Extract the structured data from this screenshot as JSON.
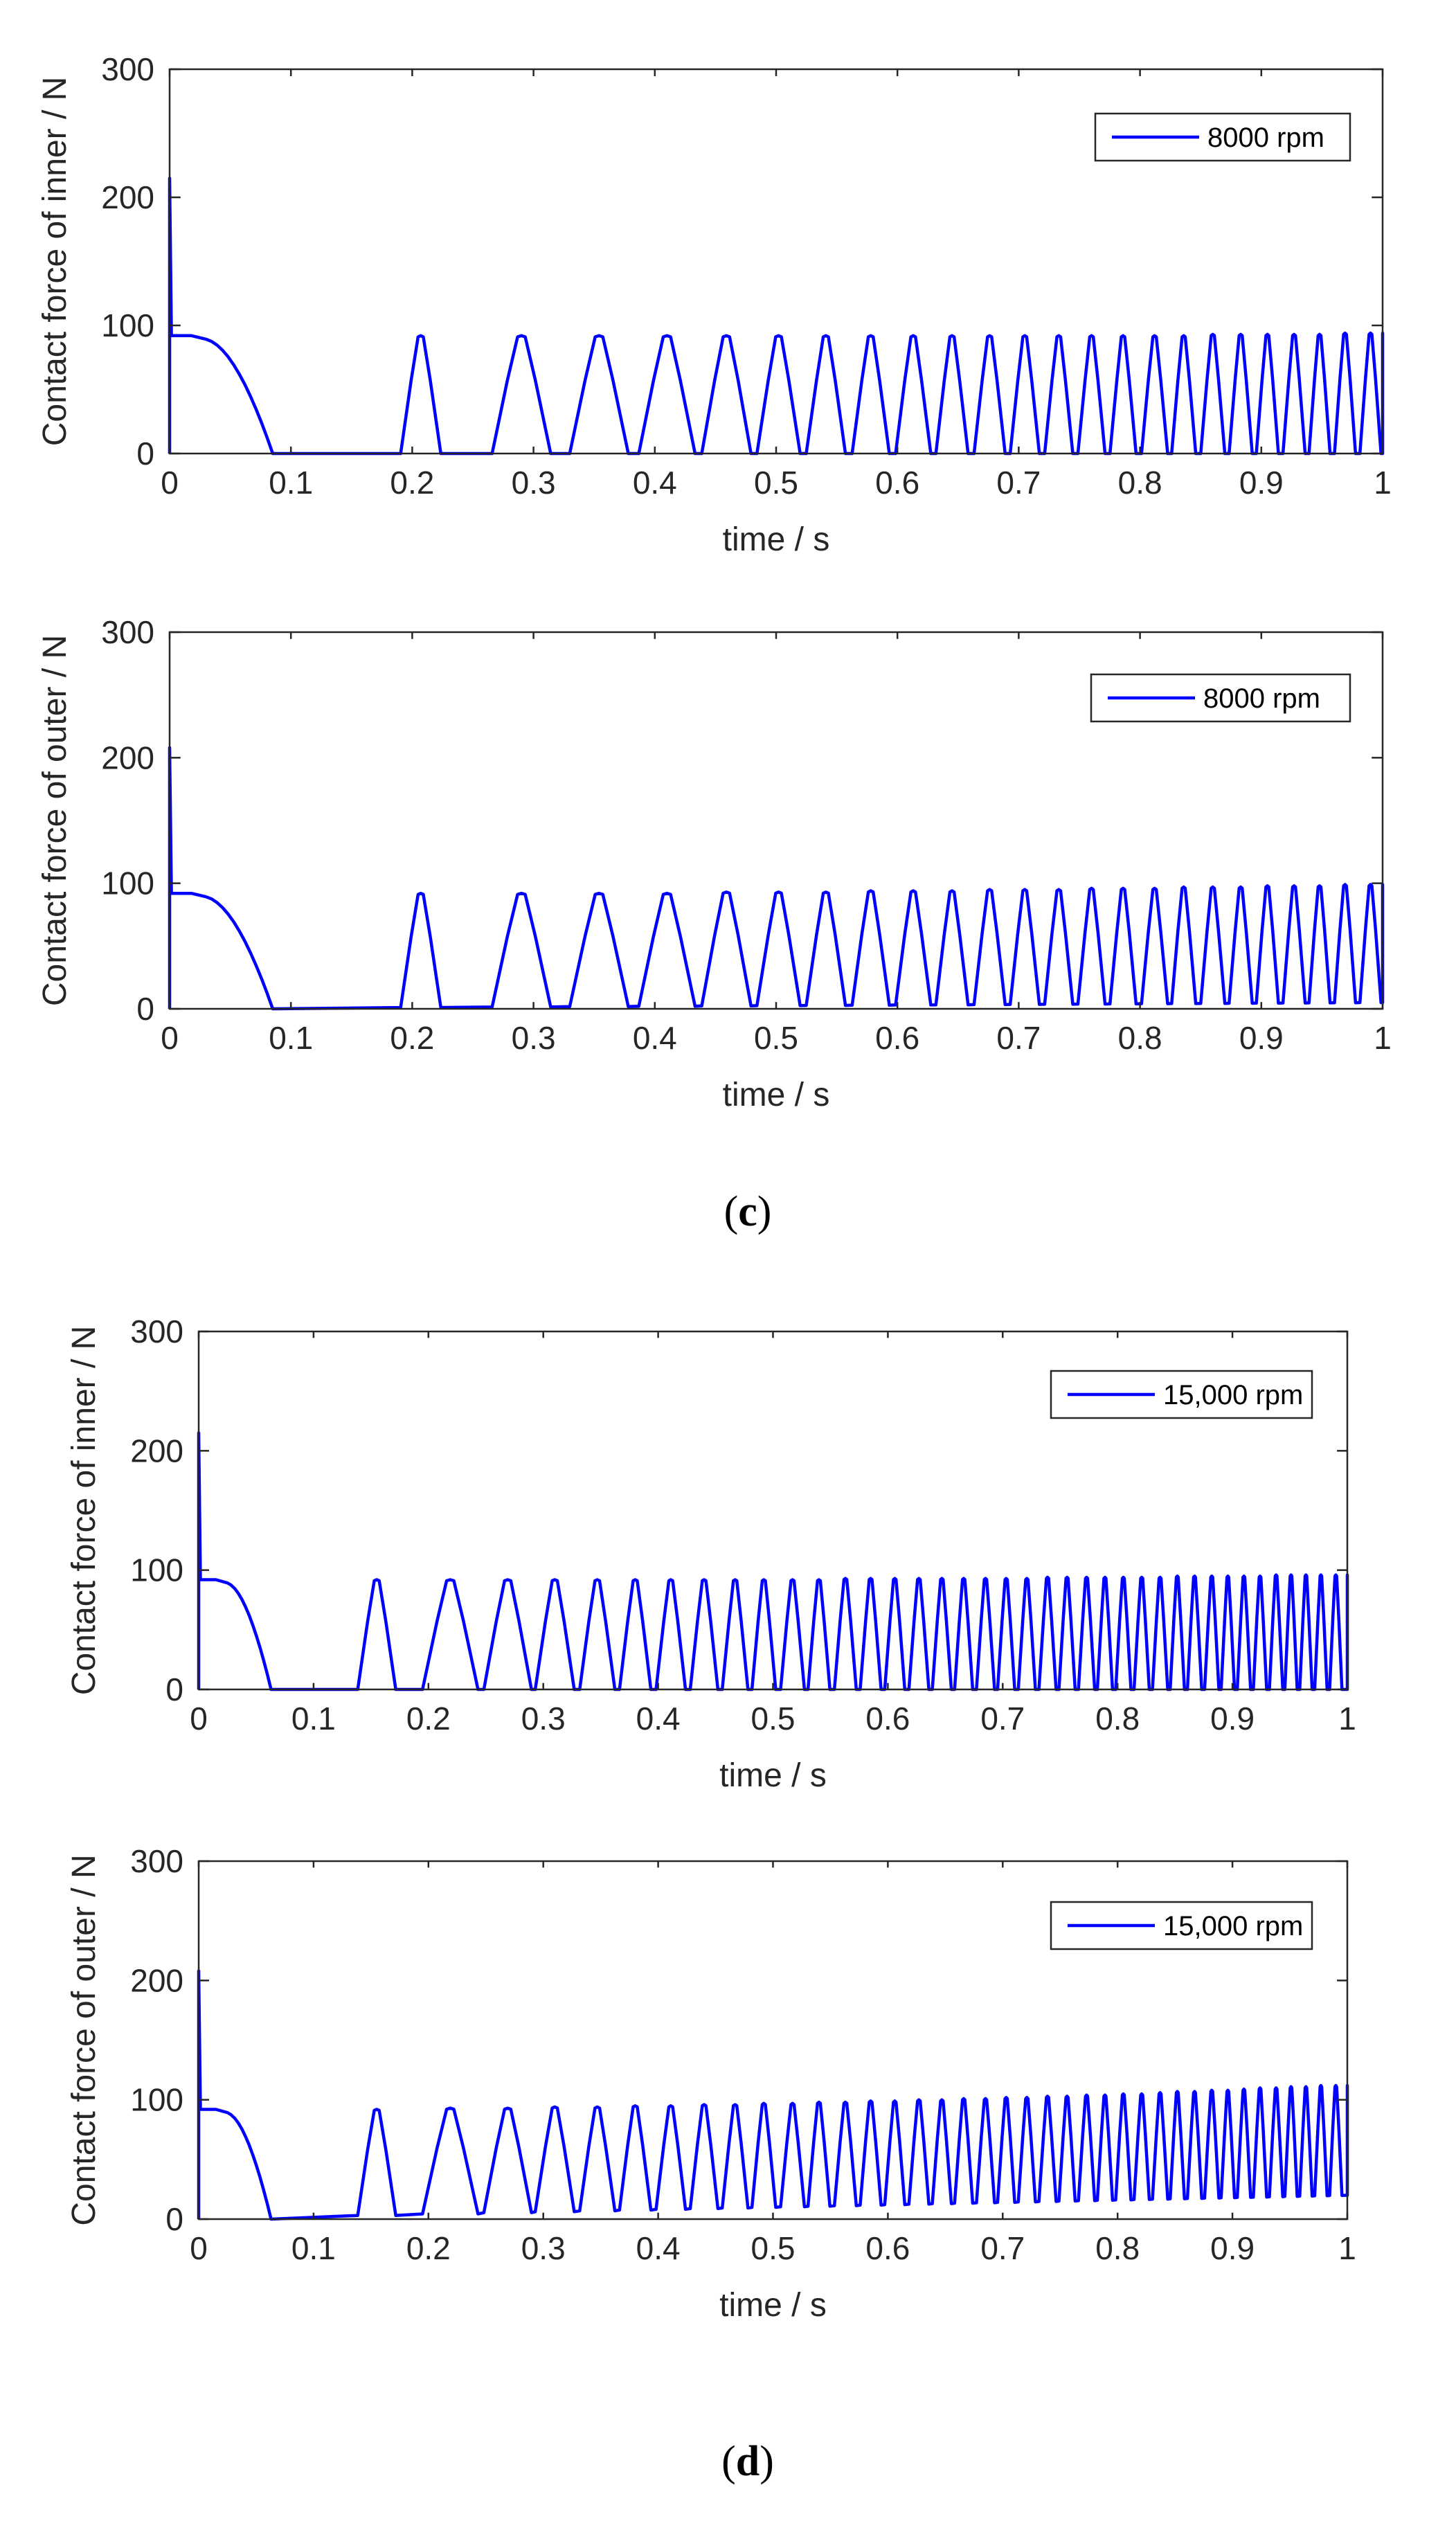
{
  "colors": {
    "series": "#0000ff",
    "axis": "#262626",
    "background": "#ffffff"
  },
  "panels": [
    {
      "label_open": "(",
      "label_letter": "c",
      "label_close": ")"
    },
    {
      "label_open": "(",
      "label_letter": "d",
      "label_close": ")"
    }
  ],
  "chart_data": [
    {
      "type": "line",
      "panel": "c",
      "xlabel": "time / s",
      "ylabel": "Contact force of inner / N",
      "xlim": [
        0,
        1
      ],
      "ylim": [
        0,
        300
      ],
      "xticks": [
        0,
        0.1,
        0.2,
        0.3,
        0.4,
        0.5,
        0.6,
        0.7,
        0.8,
        0.9,
        1
      ],
      "xtick_labels": [
        "0",
        "0.1",
        "0.2",
        "0.3",
        "0.4",
        "0.5",
        "0.6",
        "0.7",
        "0.8",
        "0.9",
        "1"
      ],
      "yticks": [
        0,
        100,
        200,
        300
      ],
      "ytick_labels": [
        "0",
        "100",
        "200",
        "300"
      ],
      "legend": "top-right",
      "grid": false,
      "series": [
        {
          "name": "8000 rpm",
          "initial_spike": 215,
          "plateau": 92,
          "plateau_end": 0.03,
          "decay_end": 0.085,
          "peak_times": [
            0.207,
            0.29,
            0.354,
            0.41,
            0.459,
            0.502,
            0.541,
            0.578,
            0.613,
            0.645,
            0.676,
            0.705,
            0.733,
            0.76,
            0.786,
            0.812,
            0.836,
            0.86,
            0.883,
            0.905,
            0.927,
            0.948,
            0.969,
            0.99
          ],
          "peak_values": [
            92,
            92,
            92,
            92,
            92,
            92,
            92,
            92,
            92,
            92,
            92,
            92,
            92,
            92,
            92,
            92,
            92,
            93,
            93,
            93,
            93,
            93,
            94,
            94
          ],
          "baseline": [
            0,
            0
          ]
        }
      ]
    },
    {
      "type": "line",
      "panel": "c",
      "xlabel": "time / s",
      "ylabel": "Contact force of outer / N",
      "xlim": [
        0,
        1
      ],
      "ylim": [
        0,
        300
      ],
      "xticks": [
        0,
        0.1,
        0.2,
        0.3,
        0.4,
        0.5,
        0.6,
        0.7,
        0.8,
        0.9,
        1
      ],
      "xtick_labels": [
        "0",
        "0.1",
        "0.2",
        "0.3",
        "0.4",
        "0.5",
        "0.6",
        "0.7",
        "0.8",
        "0.9",
        "1"
      ],
      "yticks": [
        0,
        100,
        200,
        300
      ],
      "ytick_labels": [
        "0",
        "100",
        "200",
        "300"
      ],
      "legend": "top-right",
      "grid": false,
      "series": [
        {
          "name": "8000 rpm",
          "initial_spike": 208,
          "plateau": 92,
          "plateau_end": 0.03,
          "decay_end": 0.085,
          "peak_times": [
            0.207,
            0.29,
            0.354,
            0.41,
            0.459,
            0.502,
            0.541,
            0.578,
            0.613,
            0.645,
            0.676,
            0.705,
            0.733,
            0.76,
            0.786,
            0.812,
            0.836,
            0.86,
            0.883,
            0.905,
            0.927,
            0.948,
            0.969,
            0.99
          ],
          "peak_values": [
            92,
            92,
            92,
            92,
            93,
            93,
            93,
            94,
            94,
            94,
            95,
            95,
            95,
            96,
            96,
            96,
            97,
            97,
            97,
            98,
            98,
            98,
            99,
            99
          ],
          "baseline": [
            0,
            5
          ]
        }
      ]
    },
    {
      "type": "line",
      "panel": "d",
      "xlabel": "time / s",
      "ylabel": "Contact force of inner / N",
      "xlim": [
        0,
        1
      ],
      "ylim": [
        0,
        300
      ],
      "xticks": [
        0,
        0.1,
        0.2,
        0.3,
        0.4,
        0.5,
        0.6,
        0.7,
        0.8,
        0.9,
        1
      ],
      "xtick_labels": [
        "0",
        "0.1",
        "0.2",
        "0.3",
        "0.4",
        "0.5",
        "0.6",
        "0.7",
        "0.8",
        "0.9",
        "1"
      ],
      "yticks": [
        0,
        100,
        200,
        300
      ],
      "ytick_labels": [
        "0",
        "100",
        "200",
        "300"
      ],
      "legend": "top-right",
      "grid": false,
      "series": [
        {
          "name": "15,000 rpm",
          "initial_spike": 215,
          "plateau": 92,
          "plateau_end": 0.025,
          "decay_end": 0.063,
          "peak_times": [
            0.155,
            0.219,
            0.269,
            0.31,
            0.347,
            0.38,
            0.411,
            0.44,
            0.467,
            0.492,
            0.517,
            0.54,
            0.563,
            0.585,
            0.606,
            0.627,
            0.647,
            0.666,
            0.685,
            0.703,
            0.721,
            0.739,
            0.756,
            0.773,
            0.789,
            0.805,
            0.821,
            0.837,
            0.852,
            0.867,
            0.882,
            0.896,
            0.91,
            0.924,
            0.938,
            0.951,
            0.964,
            0.977,
            0.99
          ],
          "peak_values": [
            92,
            92,
            92,
            92,
            92,
            92,
            92,
            92,
            92,
            92,
            92,
            92,
            93,
            93,
            93,
            93,
            93,
            93,
            93,
            93,
            93,
            94,
            94,
            94,
            94,
            94,
            94,
            94,
            95,
            95,
            95,
            95,
            95,
            95,
            96,
            96,
            96,
            96,
            96
          ],
          "baseline": [
            0,
            0
          ]
        }
      ]
    },
    {
      "type": "line",
      "panel": "d",
      "xlabel": "time / s",
      "ylabel": "Contact force of outer / N",
      "xlim": [
        0,
        1
      ],
      "ylim": [
        0,
        300
      ],
      "xticks": [
        0,
        0.1,
        0.2,
        0.3,
        0.4,
        0.5,
        0.6,
        0.7,
        0.8,
        0.9,
        1
      ],
      "xtick_labels": [
        "0",
        "0.1",
        "0.2",
        "0.3",
        "0.4",
        "0.5",
        "0.6",
        "0.7",
        "0.8",
        "0.9",
        "1"
      ],
      "yticks": [
        0,
        100,
        200,
        300
      ],
      "ytick_labels": [
        "0",
        "100",
        "200",
        "300"
      ],
      "legend": "top-right",
      "grid": false,
      "series": [
        {
          "name": "15,000 rpm",
          "initial_spike": 208,
          "plateau": 92,
          "plateau_end": 0.025,
          "decay_end": 0.063,
          "peak_times": [
            0.155,
            0.219,
            0.269,
            0.31,
            0.347,
            0.38,
            0.411,
            0.44,
            0.467,
            0.492,
            0.517,
            0.54,
            0.563,
            0.585,
            0.606,
            0.627,
            0.647,
            0.666,
            0.685,
            0.703,
            0.721,
            0.739,
            0.756,
            0.773,
            0.789,
            0.805,
            0.821,
            0.837,
            0.852,
            0.867,
            0.882,
            0.896,
            0.91,
            0.924,
            0.938,
            0.951,
            0.964,
            0.977,
            0.99
          ],
          "peak_values": [
            92,
            93,
            93,
            94,
            94,
            95,
            95,
            96,
            96,
            97,
            97,
            98,
            98,
            99,
            99,
            100,
            100,
            101,
            101,
            102,
            102,
            103,
            103,
            104,
            104,
            105,
            105,
            106,
            107,
            107,
            108,
            108,
            109,
            110,
            110,
            111,
            111,
            112,
            112
          ],
          "baseline": [
            0,
            20
          ]
        }
      ]
    }
  ]
}
